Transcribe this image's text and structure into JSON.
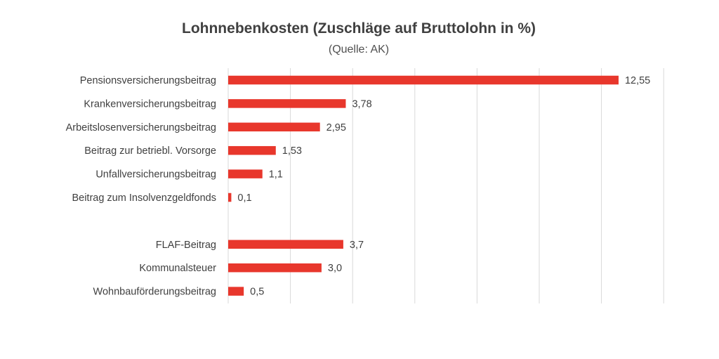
{
  "chart_data": {
    "type": "bar",
    "orientation": "horizontal",
    "title": "Lohnnebenkosten (Zuschläge auf Bruttolohn in %)",
    "subtitle": "(Quelle: AK)",
    "categories": [
      "Pensionsversicherungsbeitrag",
      "Krankenversicherungsbeitrag",
      "Arbeitslosenversicherungsbeitrag",
      "Beitrag zur betriebl. Vorsorge",
      "Unfallversicherungsbeitrag",
      "Beitrag zum Insolvenzgeldfonds",
      "",
      "FLAF-Beitrag",
      "Kommunalsteuer",
      "Wohnbauförderungsbeitrag"
    ],
    "values": [
      12.55,
      3.78,
      2.95,
      1.53,
      1.1,
      0.1,
      null,
      3.7,
      3.0,
      0.5
    ],
    "value_labels": [
      "12,55",
      "3,78",
      "2,95",
      "1,53",
      "1,1",
      "0,1",
      "",
      "3,7",
      "3,0",
      "0,5"
    ],
    "xlim": [
      0,
      14
    ],
    "grid_step": 2,
    "grid": true,
    "legend": "none",
    "xlabel": "",
    "ylabel": "",
    "bar_color": "#e8372c",
    "grid_color": "#d9d9d9",
    "text_color": "#404040"
  }
}
